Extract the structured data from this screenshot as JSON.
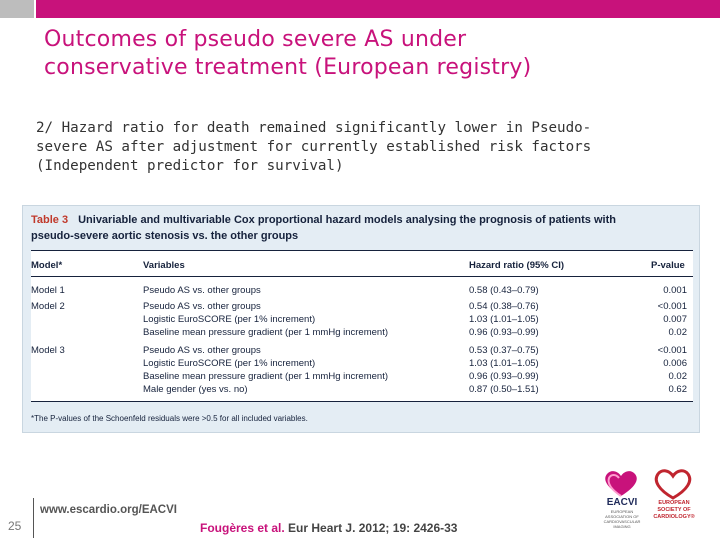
{
  "slide": {
    "title_lines": [
      "Outcomes of pseudo severe AS under",
      "conservative treatment (European registry)"
    ],
    "subtitle_lines": [
      "2/ Hazard ratio for death remained significantly lower in Pseudo-",
      "severe AS  after adjustment for currently established risk factors",
      "(Independent predictor for survival)"
    ],
    "page_number": "25",
    "url": "www.escardio.org/EACVI",
    "citation": {
      "authors": "Fougères et al.",
      "reference": "Eur Heart J. 2012; 19: 2426-33"
    }
  },
  "table": {
    "number": "Table 3",
    "caption_lines": [
      "Univariable and multivariable Cox proportional hazard models analysing the prognosis of patients with",
      "pseudo-severe aortic stenosis vs. the other groups"
    ],
    "headers": {
      "model": "Model*",
      "variables": "Variables",
      "hazard_ratio": "Hazard ratio (95% CI)",
      "p_value": "P-value"
    },
    "rows": [
      {
        "model": "Model 1",
        "variable": "Pseudo AS vs. other groups",
        "hr": "0.58 (0.43–0.79)",
        "p": "0.001"
      },
      {
        "model": "Model 2",
        "variable": "Pseudo AS vs. other groups",
        "hr": "0.54 (0.38–0.76)",
        "p": "<0.001"
      },
      {
        "model": "",
        "variable": "Logistic EuroSCORE (per 1% increment)",
        "hr": "1.03 (1.01–1.05)",
        "p": "0.007"
      },
      {
        "model": "",
        "variable": "Baseline mean pressure gradient (per 1 mmHg increment)",
        "hr": "0.96 (0.93–0.99)",
        "p": "0.02"
      },
      {
        "model": "Model 3",
        "variable": "Pseudo AS vs. other groups",
        "hr": "0.53 (0.37–0.75)",
        "p": "<0.001"
      },
      {
        "model": "",
        "variable": "Logistic EuroSCORE (per 1% increment)",
        "hr": "1.03 (1.01–1.05)",
        "p": "0.006"
      },
      {
        "model": "",
        "variable": "Baseline mean pressure gradient (per 1 mmHg increment)",
        "hr": "0.96 (0.93–0.99)",
        "p": "0.02"
      },
      {
        "model": "",
        "variable": "Male gender (yes vs. no)",
        "hr": "0.87 (0.50–1.51)",
        "p": "0.62"
      }
    ],
    "footnote": "*The P-values of the Schoenfeld residuals were >0.5 for all included variables."
  },
  "logos": {
    "eacvi_label": "EACVI",
    "eacvi_subtext": "EUROPEAN ASSOCIATION OF CARDIOVASCULAR IMAGING",
    "esc_lines": [
      "EUROPEAN",
      "SOCIETY OF",
      "CARDIOLOGY®"
    ]
  },
  "colors": {
    "accent": "#c8127b",
    "table_background": "#e4edf4",
    "table_text": "#16223c"
  }
}
